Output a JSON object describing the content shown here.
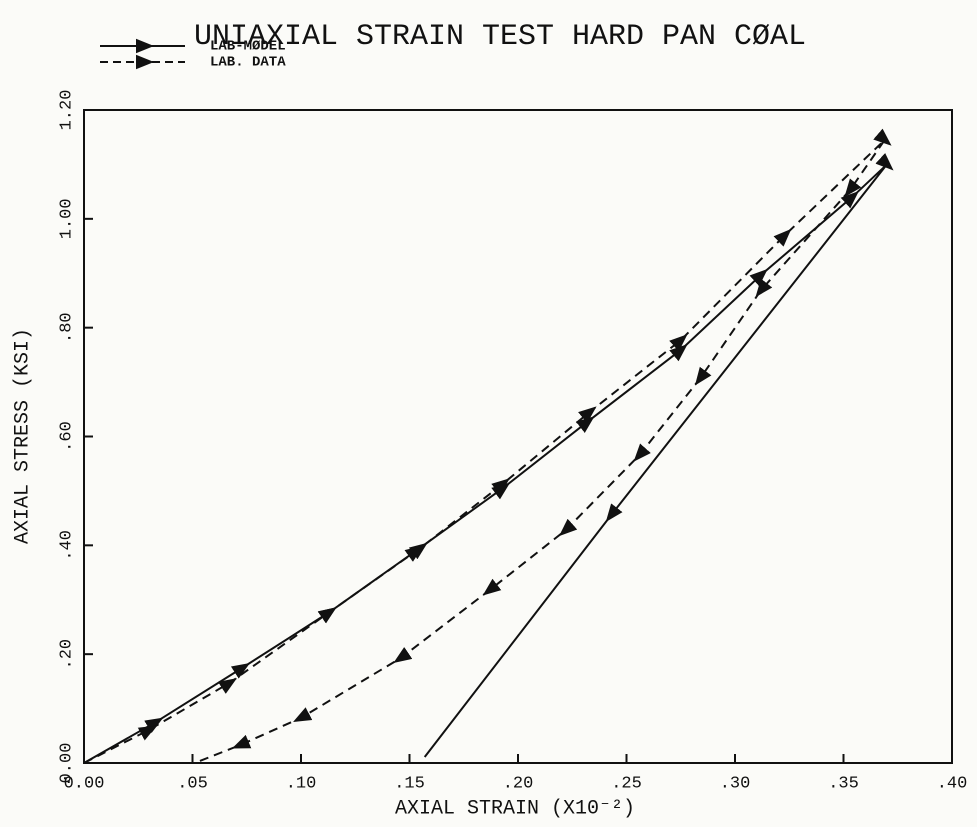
{
  "chart_data": {
    "type": "line",
    "title": "UNIAXIAL STRAIN TEST HARD PAN CØAL",
    "x_label": "AXIAL STRAIN (X10⁻²)",
    "y_label": "AXIAL STRESS (KSI)",
    "xlim": [
      0,
      0.4
    ],
    "ylim": [
      0,
      1.2
    ],
    "xticks": [
      {
        "value": 0,
        "label": "0.00"
      },
      {
        "value": 0.05,
        "label": ".05"
      },
      {
        "value": 0.1,
        "label": ".10"
      },
      {
        "value": 0.15,
        "label": ".15"
      },
      {
        "value": 0.2,
        "label": ".20"
      },
      {
        "value": 0.25,
        "label": ".25"
      },
      {
        "value": 0.3,
        "label": ".30"
      },
      {
        "value": 0.35,
        "label": ".35"
      },
      {
        "value": 0.4,
        "label": ".40"
      }
    ],
    "yticks": [
      {
        "value": 0,
        "label": "0.00"
      },
      {
        "value": 0.2,
        "label": ".20"
      },
      {
        "value": 0.4,
        "label": ".40"
      },
      {
        "value": 0.6,
        "label": ".60"
      },
      {
        "value": 0.8,
        "label": ".80"
      },
      {
        "value": 1.0,
        "label": "1.00"
      },
      {
        "value": 1.2,
        "label": "1.20"
      }
    ],
    "series": [
      {
        "name": "LAB-MØDEL",
        "color": "#111111",
        "dash": false,
        "x": [
          0,
          0.033,
          0.073,
          0.113,
          0.153,
          0.193,
          0.232,
          0.275,
          0.312,
          0.354,
          0.37,
          0.243,
          0.157
        ],
        "values": [
          0,
          0.075,
          0.175,
          0.277,
          0.39,
          0.505,
          0.627,
          0.759,
          0.897,
          1.04,
          1.1,
          0.456,
          0.011
        ]
      },
      {
        "name": "LAB. DATA",
        "color": "#111111",
        "dash": true,
        "x": [
          0,
          0.03,
          0.067,
          0.113,
          0.155,
          0.193,
          0.233,
          0.275,
          0.323,
          0.369,
          0.353,
          0.312,
          0.284,
          0.256,
          0.222,
          0.187,
          0.146,
          0.1,
          0.072,
          0.051
        ],
        "values": [
          0,
          0.061,
          0.147,
          0.277,
          0.395,
          0.513,
          0.645,
          0.777,
          0.97,
          1.145,
          1.053,
          0.869,
          0.707,
          0.566,
          0.428,
          0.318,
          0.193,
          0.083,
          0.033,
          0
        ]
      }
    ]
  }
}
